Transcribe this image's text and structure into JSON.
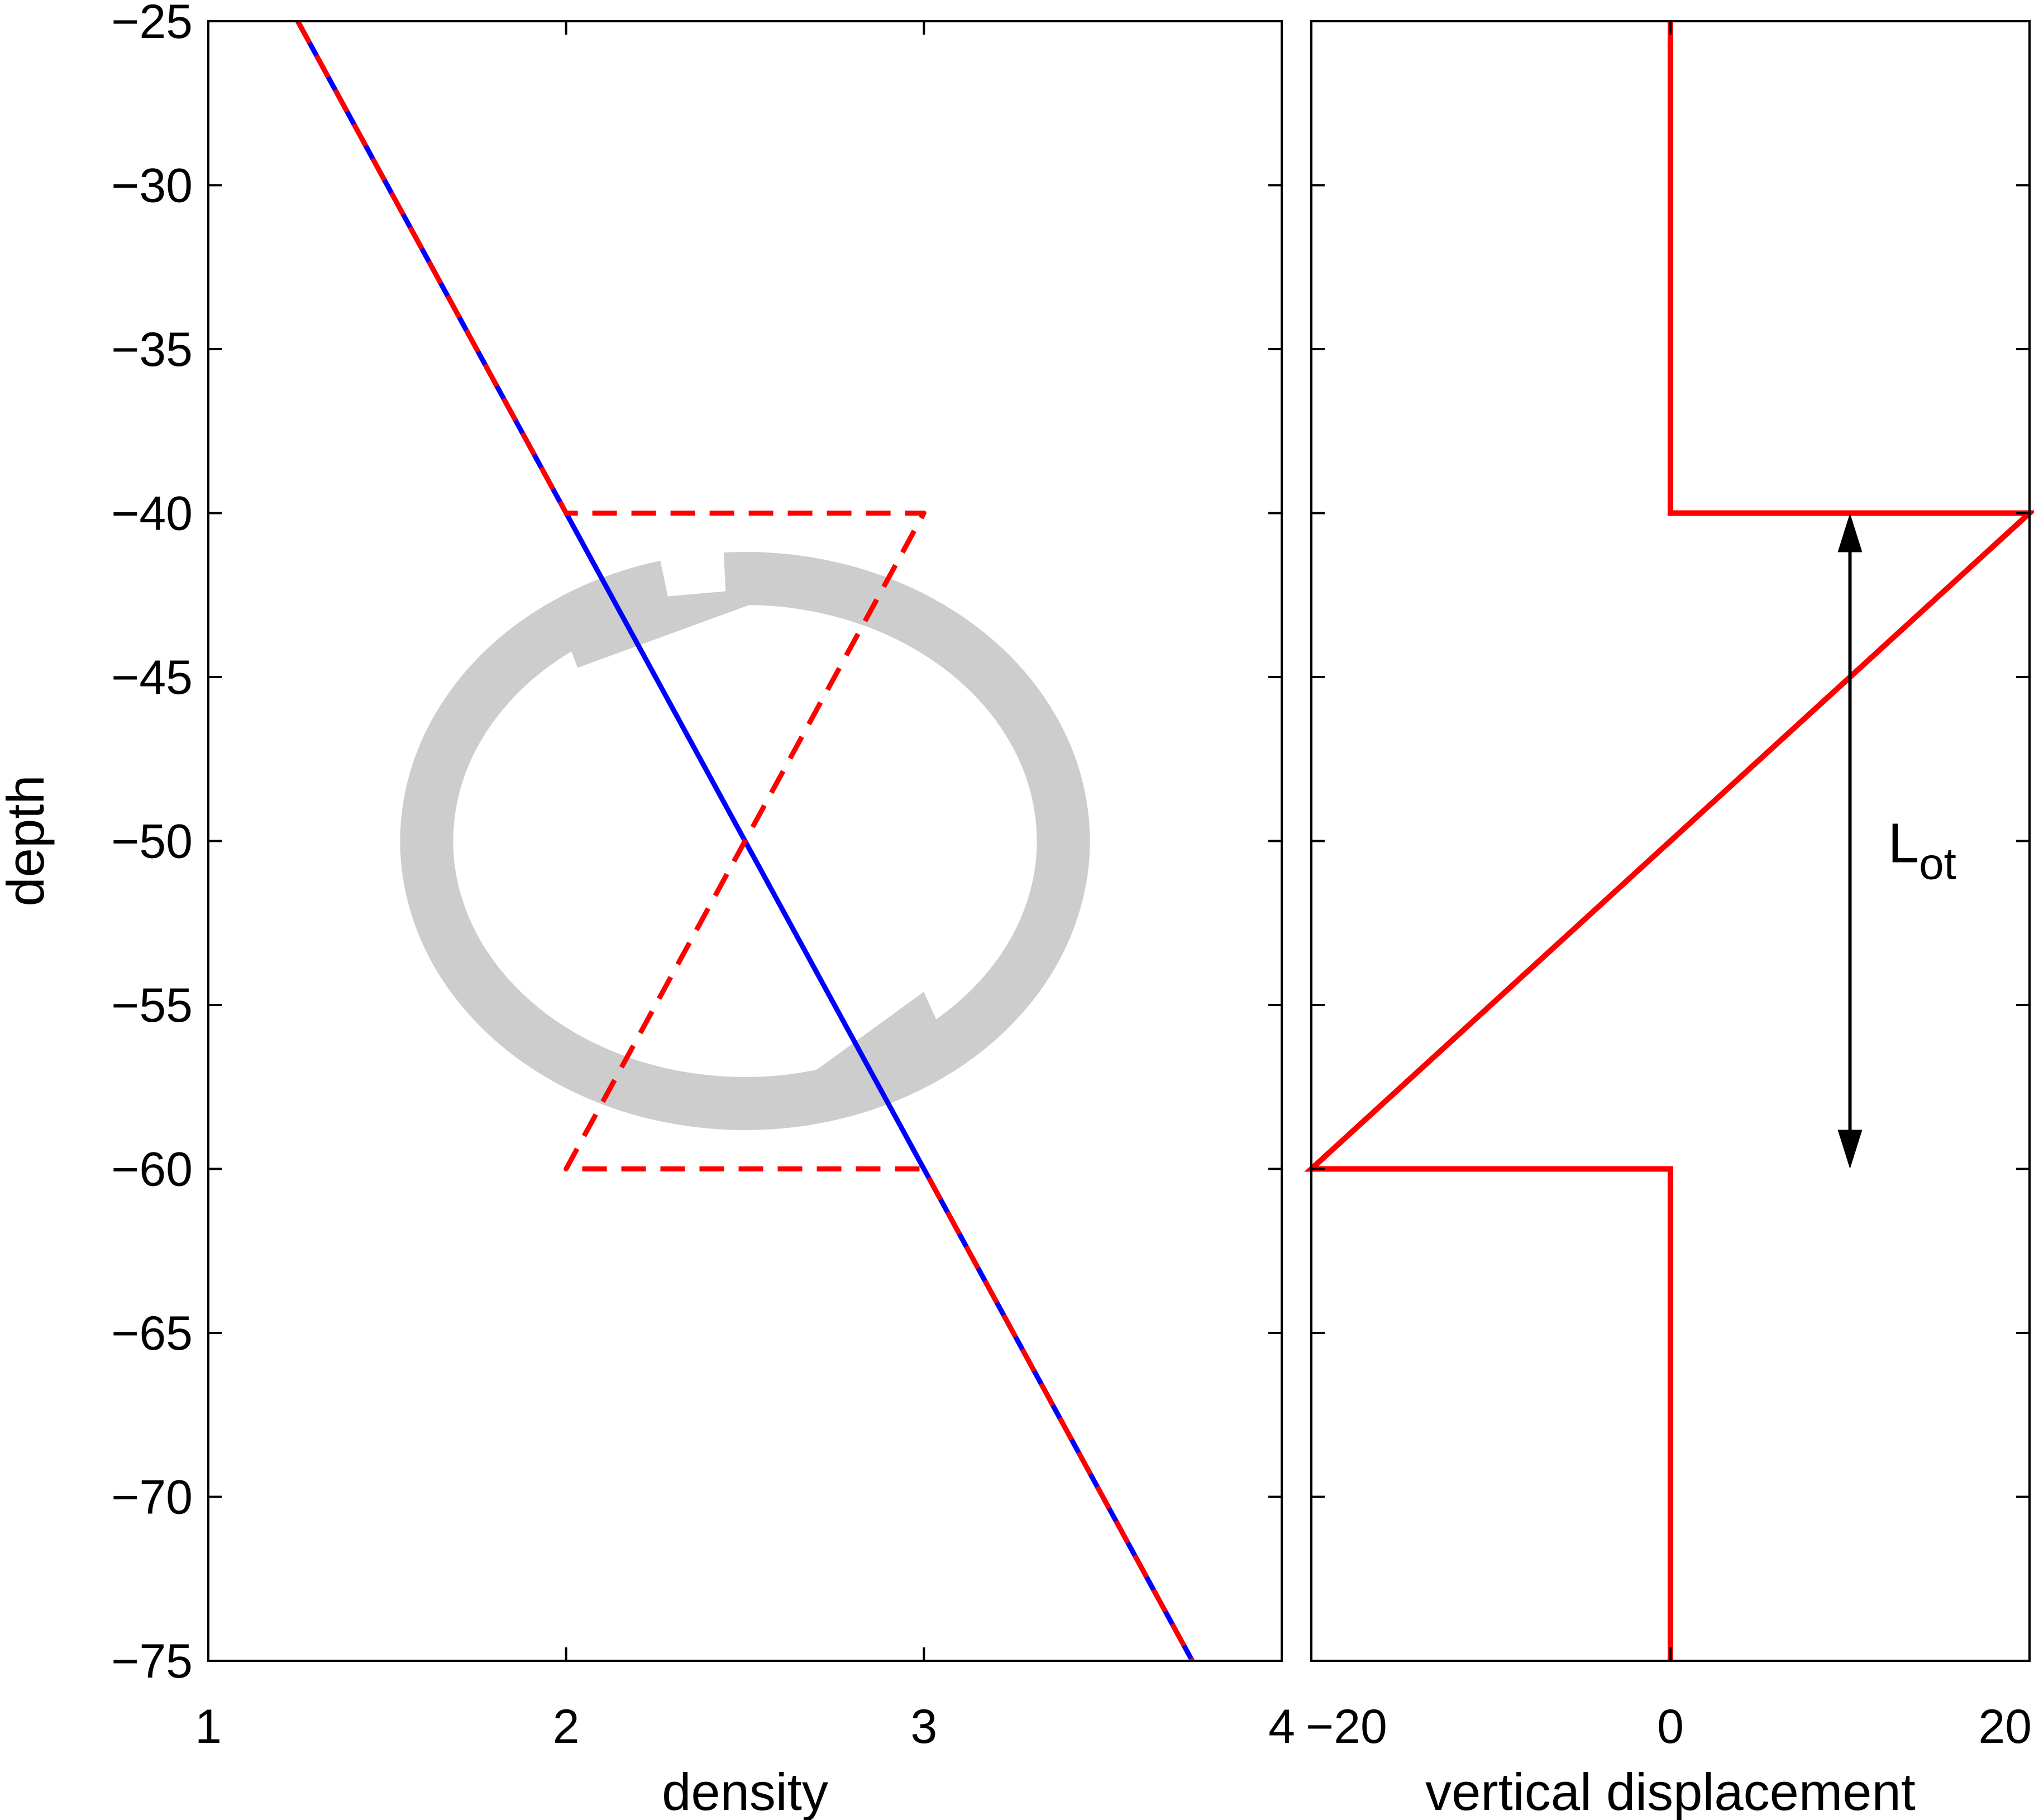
{
  "chart_data": [
    {
      "type": "line",
      "xlabel": "density",
      "ylabel": "depth",
      "xlim": [
        1,
        4
      ],
      "ylim": [
        -75,
        -25
      ],
      "xticks": [
        "1",
        "2",
        "3",
        "4"
      ],
      "yticks": [
        "−25",
        "−30",
        "−35",
        "−40",
        "−45",
        "−50",
        "−55",
        "−60",
        "−65",
        "−70",
        "−75"
      ],
      "grid": false,
      "series": [
        {
          "color": "#0000ff",
          "style": "solid",
          "points": [
            {
              "x": 1.25,
              "y": -25
            },
            {
              "x": 3.75,
              "y": -75
            }
          ]
        },
        {
          "color": "#ff0000",
          "style": "dashed",
          "points": [
            {
              "x": 1.25,
              "y": -25
            },
            {
              "x": 2.0,
              "y": -40
            },
            {
              "x": 3.0,
              "y": -40
            },
            {
              "x": 2.0,
              "y": -60
            },
            {
              "x": 3.0,
              "y": -60
            },
            {
              "x": 3.75,
              "y": -75
            }
          ]
        }
      ],
      "annotations": [
        {
          "kind": "overturn-circulation-arrows",
          "color": "#c8c8c8",
          "center": {
            "x": 2.5,
            "y": -50
          }
        }
      ]
    },
    {
      "type": "line",
      "xlabel": "vertical displacement",
      "ylabel": "",
      "xlim": [
        -20,
        20
      ],
      "ylim": [
        -75,
        -25
      ],
      "xticks": [
        "−20",
        "0",
        "20"
      ],
      "grid": false,
      "series": [
        {
          "color": "#ff0000",
          "style": "solid",
          "points": [
            {
              "x": 0,
              "y": -25
            },
            {
              "x": 0,
              "y": -40
            },
            {
              "x": 20,
              "y": -40
            },
            {
              "x": -20,
              "y": -60
            },
            {
              "x": 0,
              "y": -60
            },
            {
              "x": 0,
              "y": -75
            }
          ]
        }
      ],
      "annotations": [
        {
          "kind": "double-arrow",
          "label_main": "L",
          "label_sub": "ot",
          "x": 10,
          "y1": -40,
          "y2": -60,
          "color": "#000000"
        }
      ]
    }
  ]
}
